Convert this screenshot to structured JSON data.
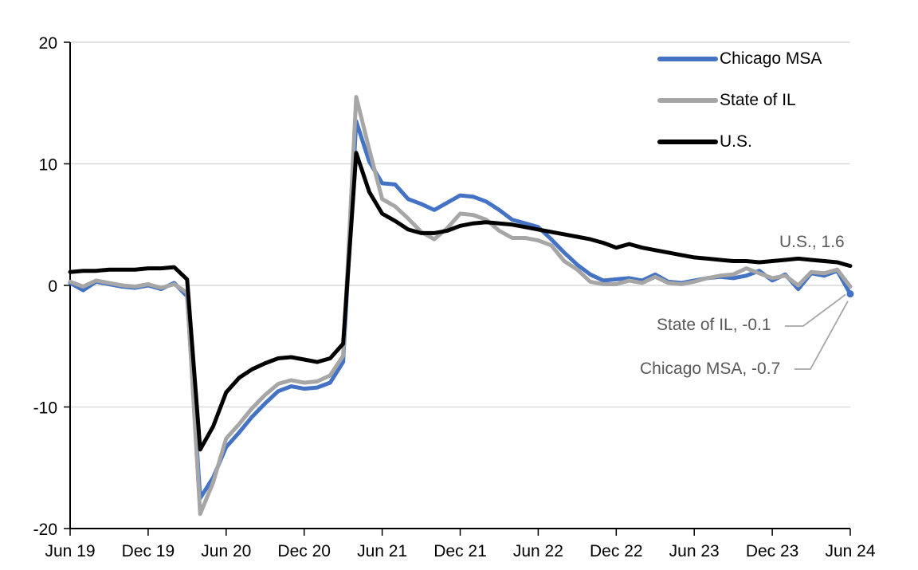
{
  "chart_data": {
    "type": "line",
    "title": "",
    "xlabel": "",
    "ylabel": "",
    "ylim": [
      -20,
      20
    ],
    "grid": "horizontal",
    "legend_position": "top-right",
    "frequency": "monthly",
    "y_tick_labels": [
      "20",
      "10",
      "0",
      "-10",
      "-20"
    ],
    "x_tick_labels": [
      "Jun 19",
      "Dec 19",
      "Jun 20",
      "Dec 20",
      "Jun 21",
      "Dec 21",
      "Jun 22",
      "Dec 22",
      "Jun 23",
      "Dec 23",
      "Jun 24"
    ],
    "x": [
      "2019-06",
      "2019-07",
      "2019-08",
      "2019-09",
      "2019-10",
      "2019-11",
      "2019-12",
      "2020-01",
      "2020-02",
      "2020-03",
      "2020-04",
      "2020-05",
      "2020-06",
      "2020-07",
      "2020-08",
      "2020-09",
      "2020-10",
      "2020-11",
      "2020-12",
      "2021-01",
      "2021-02",
      "2021-03",
      "2021-04",
      "2021-05",
      "2021-06",
      "2021-07",
      "2021-08",
      "2021-09",
      "2021-10",
      "2021-11",
      "2021-12",
      "2022-01",
      "2022-02",
      "2022-03",
      "2022-04",
      "2022-05",
      "2022-06",
      "2022-07",
      "2022-08",
      "2022-09",
      "2022-10",
      "2022-11",
      "2022-12",
      "2023-01",
      "2023-02",
      "2023-03",
      "2023-04",
      "2023-05",
      "2023-06",
      "2023-07",
      "2023-08",
      "2023-09",
      "2023-10",
      "2023-11",
      "2023-12",
      "2024-01",
      "2024-02",
      "2024-03",
      "2024-04",
      "2024-05",
      "2024-06"
    ],
    "series": [
      {
        "name": "Chicago MSA",
        "color": "#4472C4",
        "values": [
          0.2,
          -0.4,
          0.3,
          0.1,
          -0.1,
          -0.2,
          0.0,
          -0.3,
          0.2,
          -0.9,
          -17.5,
          -15.8,
          -13.3,
          -12.1,
          -10.8,
          -9.7,
          -8.7,
          -8.3,
          -8.5,
          -8.4,
          -8.0,
          -6.3,
          13.5,
          10.2,
          8.4,
          8.3,
          7.1,
          6.7,
          6.2,
          6.8,
          7.4,
          7.3,
          6.9,
          6.2,
          5.4,
          5.1,
          4.8,
          3.8,
          2.7,
          1.7,
          0.9,
          0.4,
          0.5,
          0.6,
          0.4,
          0.9,
          0.3,
          0.2,
          0.4,
          0.6,
          0.7,
          0.6,
          0.8,
          1.2,
          0.4,
          0.9,
          -0.3,
          1.0,
          0.8,
          1.2,
          -0.7
        ]
      },
      {
        "name": "State of IL",
        "color": "#A6A6A6",
        "values": [
          0.3,
          -0.1,
          0.4,
          0.2,
          0.0,
          -0.1,
          0.1,
          -0.2,
          0.1,
          -0.6,
          -18.8,
          -16.2,
          -12.6,
          -11.4,
          -10.1,
          -9.0,
          -8.1,
          -7.8,
          -8.0,
          -7.9,
          -7.4,
          -5.8,
          15.5,
          11.2,
          7.1,
          6.5,
          5.5,
          4.4,
          3.8,
          4.7,
          5.9,
          5.8,
          5.4,
          4.5,
          3.9,
          3.9,
          3.7,
          3.3,
          2.0,
          1.3,
          0.3,
          0.1,
          0.1,
          0.4,
          0.2,
          0.7,
          0.2,
          0.1,
          0.3,
          0.6,
          0.8,
          0.9,
          1.4,
          1.0,
          0.6,
          0.8,
          0.0,
          1.1,
          1.0,
          1.3,
          -0.1
        ]
      },
      {
        "name": "U.S.",
        "color": "#000000",
        "values": [
          1.1,
          1.2,
          1.2,
          1.3,
          1.3,
          1.3,
          1.4,
          1.4,
          1.5,
          0.5,
          -13.5,
          -11.6,
          -8.8,
          -7.6,
          -6.9,
          -6.4,
          -6.0,
          -5.9,
          -6.1,
          -6.3,
          -6.0,
          -4.8,
          10.9,
          7.7,
          5.9,
          5.3,
          4.6,
          4.3,
          4.3,
          4.5,
          4.9,
          5.1,
          5.2,
          5.1,
          5.0,
          4.8,
          4.6,
          4.4,
          4.2,
          4.0,
          3.8,
          3.5,
          3.1,
          3.4,
          3.1,
          2.9,
          2.7,
          2.5,
          2.3,
          2.2,
          2.1,
          2.0,
          2.0,
          1.9,
          2.0,
          2.1,
          2.2,
          2.1,
          2.0,
          1.9,
          1.6
        ]
      }
    ],
    "annotations": [
      {
        "text": "U.S., 1.6",
        "series": "U.S.",
        "value": 1.6
      },
      {
        "text": "State of IL, -0.1",
        "series": "State of IL",
        "value": -0.1
      },
      {
        "text": "Chicago MSA, -0.7",
        "series": "Chicago MSA",
        "value": -0.7
      }
    ]
  },
  "colors": {
    "gridline": "#D9D9D9",
    "axis": "#000000",
    "leader_line": "#A6A6A6",
    "annotation_text": "#595959"
  }
}
